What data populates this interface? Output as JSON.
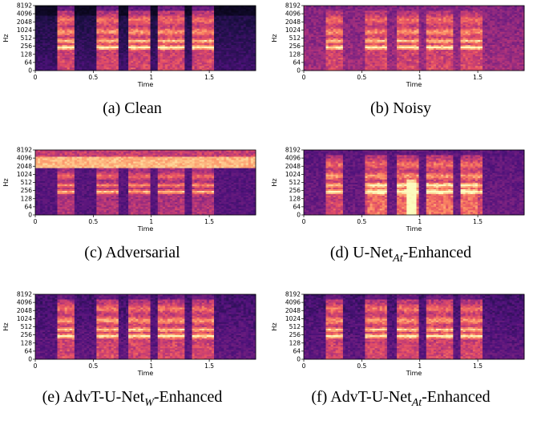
{
  "chart_data": [
    {
      "type": "heatmap",
      "caption_pre": "(a) Clean",
      "caption_sub": "",
      "caption_post": "",
      "xlabel": "Time",
      "ylabel": "Hz",
      "x_ticks": [
        "0",
        "0.5",
        "1",
        "1.5"
      ],
      "y_ticks": [
        "0",
        "64",
        "128",
        "256",
        "512",
        "1024",
        "2048",
        "4096",
        "8192"
      ],
      "xlim": [
        0,
        1.9
      ],
      "ylim": [
        0,
        8192
      ],
      "y_scale": "log",
      "colormap": "magma",
      "variant": "clean"
    },
    {
      "type": "heatmap",
      "caption_pre": "(b) Noisy",
      "caption_sub": "",
      "caption_post": "",
      "xlabel": "Time",
      "ylabel": "Hz",
      "x_ticks": [
        "0",
        "0.5",
        "1",
        "1.5"
      ],
      "y_ticks": [
        "0",
        "64",
        "128",
        "256",
        "512",
        "1024",
        "2048",
        "4096",
        "8192"
      ],
      "xlim": [
        0,
        1.9
      ],
      "ylim": [
        0,
        8192
      ],
      "y_scale": "log",
      "colormap": "magma",
      "variant": "noisy"
    },
    {
      "type": "heatmap",
      "caption_pre": "(c) Adversarial",
      "caption_sub": "",
      "caption_post": "",
      "xlabel": "Time",
      "ylabel": "Hz",
      "x_ticks": [
        "0",
        "0.5",
        "1",
        "1.5"
      ],
      "y_ticks": [
        "0",
        "64",
        "128",
        "256",
        "512",
        "1024",
        "2048",
        "4096",
        "8192"
      ],
      "xlim": [
        0,
        1.9
      ],
      "ylim": [
        0,
        8192
      ],
      "y_scale": "log",
      "colormap": "magma",
      "variant": "adversarial"
    },
    {
      "type": "heatmap",
      "caption_pre": "(d) U-Net",
      "caption_sub": "At",
      "caption_post": "-Enhanced",
      "xlabel": "Time",
      "ylabel": "Hz",
      "x_ticks": [
        "0",
        "0.5",
        "1",
        "1.5"
      ],
      "y_ticks": [
        "0",
        "64",
        "128",
        "256",
        "512",
        "1024",
        "2048",
        "4096",
        "8192"
      ],
      "xlim": [
        0,
        1.9
      ],
      "ylim": [
        0,
        8192
      ],
      "y_scale": "log",
      "colormap": "magma",
      "variant": "unet"
    },
    {
      "type": "heatmap",
      "caption_pre": "(e) AdvT-U-Net",
      "caption_sub": "W",
      "caption_post": "-Enhanced",
      "xlabel": "Time",
      "ylabel": "Hz",
      "x_ticks": [
        "0",
        "0.5",
        "1",
        "1.5"
      ],
      "y_ticks": [
        "0",
        "64",
        "128",
        "256",
        "512",
        "1024",
        "2048",
        "4096",
        "8192"
      ],
      "xlim": [
        0,
        1.9
      ],
      "ylim": [
        0,
        8192
      ],
      "y_scale": "log",
      "colormap": "magma",
      "variant": "advw"
    },
    {
      "type": "heatmap",
      "caption_pre": "(f) AdvT-U-Net",
      "caption_sub": "At",
      "caption_post": "-Enhanced",
      "xlabel": "Time",
      "ylabel": "Hz",
      "x_ticks": [
        "0",
        "0.5",
        "1",
        "1.5"
      ],
      "y_ticks": [
        "0",
        "64",
        "128",
        "256",
        "512",
        "1024",
        "2048",
        "4096",
        "8192"
      ],
      "xlim": [
        0,
        1.9
      ],
      "ylim": [
        0,
        8192
      ],
      "y_scale": "log",
      "colormap": "magma",
      "variant": "advat"
    }
  ]
}
